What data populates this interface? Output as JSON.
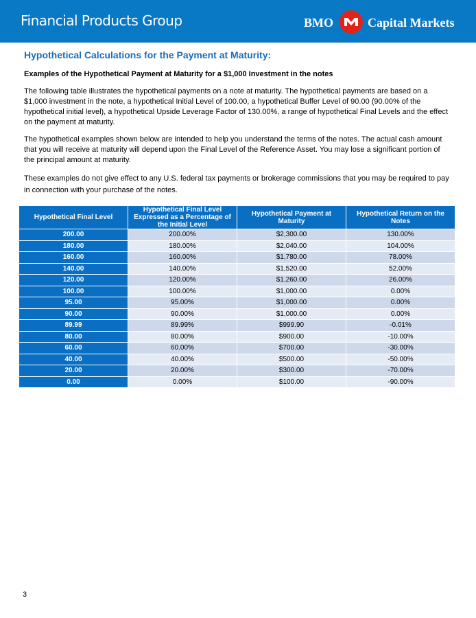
{
  "header": {
    "left": "Financial Products Group",
    "brand": "BMO",
    "right": "Capital Markets"
  },
  "heading": "Hypothetical Calculations for the Payment at Maturity:",
  "subheading": "Examples of the Hypothetical Payment at Maturity for a $1,000 Investment in the notes",
  "paragraphs": [
    "The following table illustrates the hypothetical payments on a note at maturity. The hypothetical payments are based on a $1,000 investment in the note, a hypothetical Initial Level of 100.00, a hypothetical Buffer Level of 90.00 (90.00% of the hypothetical initial level), a hypothetical Upside Leverage Factor of 130.00%, a range of hypothetical Final Levels and the effect on the payment at maturity.",
    "The hypothetical examples shown below are intended to help you understand the terms of the notes. The actual cash amount that you will receive at maturity will depend upon the Final Level of the Reference Asset. You may lose a significant portion of the principal amount at maturity.",
    "These examples do not give effect to any U.S. federal tax payments or brokerage commissions that you may be required to pay in connection with your purchase of the notes."
  ],
  "table": {
    "columns": [
      "Hypothetical Final Level",
      "Hypothetical Final Level Expressed as a Percentage of the Initial Level",
      "Hypothetical Payment at Maturity",
      "Hypothetical Return on the Notes"
    ],
    "rows": [
      [
        "200.00",
        "200.00%",
        "$2,300.00",
        "130.00%"
      ],
      [
        "180.00",
        "180.00%",
        "$2,040.00",
        "104.00%"
      ],
      [
        "160.00",
        "160.00%",
        "$1,780.00",
        "78.00%"
      ],
      [
        "140.00",
        "140.00%",
        "$1,520.00",
        "52.00%"
      ],
      [
        "120.00",
        "120.00%",
        "$1,260.00",
        "26.00%"
      ],
      [
        "100.00",
        "100.00%",
        "$1,000.00",
        "0.00%"
      ],
      [
        "95.00",
        "95.00%",
        "$1,000.00",
        "0.00%"
      ],
      [
        "90.00",
        "90.00%",
        "$1,000.00",
        "0.00%"
      ],
      [
        "89.99",
        "89.99%",
        "$999.90",
        "-0.01%"
      ],
      [
        "80.00",
        "80.00%",
        "$900.00",
        "-10.00%"
      ],
      [
        "60.00",
        "60.00%",
        "$700.00",
        "-30.00%"
      ],
      [
        "40.00",
        "40.00%",
        "$500.00",
        "-50.00%"
      ],
      [
        "20.00",
        "20.00%",
        "$300.00",
        "-70.00%"
      ],
      [
        "0.00",
        "0.00%",
        "$100.00",
        "-90.00%"
      ]
    ]
  },
  "page_number": "3"
}
